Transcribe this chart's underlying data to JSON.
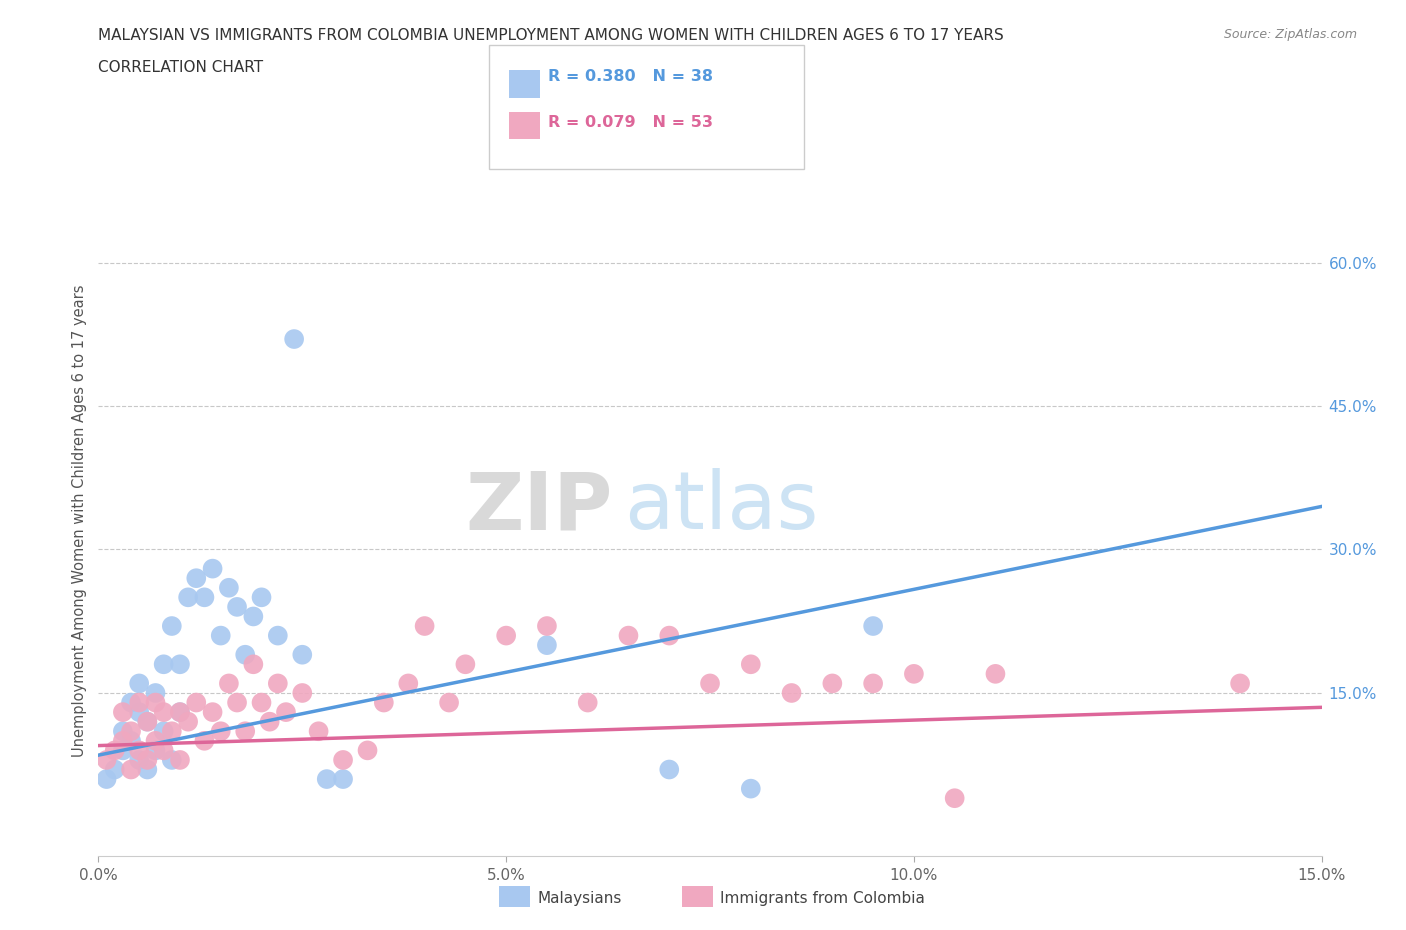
{
  "title_line1": "MALAYSIAN VS IMMIGRANTS FROM COLOMBIA UNEMPLOYMENT AMONG WOMEN WITH CHILDREN AGES 6 TO 17 YEARS",
  "title_line2": "CORRELATION CHART",
  "source": "Source: ZipAtlas.com",
  "ylabel": "Unemployment Among Women with Children Ages 6 to 17 years",
  "xlim": [
    0.0,
    0.15
  ],
  "ylim": [
    -0.02,
    0.68
  ],
  "xtick_labels": [
    "0.0%",
    "5.0%",
    "10.0%",
    "15.0%"
  ],
  "xtick_values": [
    0.0,
    0.05,
    0.1,
    0.15
  ],
  "ytick_labels_right": [
    "15.0%",
    "30.0%",
    "45.0%",
    "60.0%"
  ],
  "ytick_values_right": [
    0.15,
    0.3,
    0.45,
    0.6
  ],
  "grid_color": "#c8c8c8",
  "background_color": "#ffffff",
  "blue_color": "#a8c8f0",
  "pink_color": "#f0a8c0",
  "blue_line_color": "#5599dd",
  "pink_line_color": "#dd6699",
  "legend_R_blue": "R = 0.380",
  "legend_N_blue": "N = 38",
  "legend_R_pink": "R = 0.079",
  "legend_N_pink": "N = 53",
  "label_blue": "Malaysians",
  "label_pink": "Immigrants from Colombia",
  "watermark_zip": "ZIP",
  "watermark_atlas": "atlas",
  "blue_scatter_x": [
    0.001,
    0.002,
    0.003,
    0.003,
    0.004,
    0.004,
    0.005,
    0.005,
    0.005,
    0.006,
    0.006,
    0.007,
    0.007,
    0.008,
    0.008,
    0.009,
    0.009,
    0.01,
    0.01,
    0.011,
    0.012,
    0.013,
    0.014,
    0.015,
    0.016,
    0.017,
    0.018,
    0.019,
    0.02,
    0.022,
    0.024,
    0.025,
    0.028,
    0.03,
    0.055,
    0.07,
    0.08,
    0.095
  ],
  "blue_scatter_y": [
    0.06,
    0.07,
    0.09,
    0.11,
    0.1,
    0.14,
    0.08,
    0.13,
    0.16,
    0.07,
    0.12,
    0.09,
    0.15,
    0.11,
    0.18,
    0.08,
    0.22,
    0.13,
    0.18,
    0.25,
    0.27,
    0.25,
    0.28,
    0.21,
    0.26,
    0.24,
    0.19,
    0.23,
    0.25,
    0.21,
    0.52,
    0.19,
    0.06,
    0.06,
    0.2,
    0.07,
    0.05,
    0.22
  ],
  "pink_scatter_x": [
    0.001,
    0.002,
    0.003,
    0.003,
    0.004,
    0.004,
    0.005,
    0.005,
    0.006,
    0.006,
    0.007,
    0.007,
    0.008,
    0.008,
    0.009,
    0.01,
    0.01,
    0.011,
    0.012,
    0.013,
    0.014,
    0.015,
    0.016,
    0.017,
    0.018,
    0.019,
    0.02,
    0.021,
    0.022,
    0.023,
    0.025,
    0.027,
    0.03,
    0.033,
    0.035,
    0.038,
    0.04,
    0.043,
    0.045,
    0.05,
    0.055,
    0.06,
    0.065,
    0.07,
    0.075,
    0.08,
    0.085,
    0.09,
    0.095,
    0.1,
    0.105,
    0.11,
    0.14
  ],
  "pink_scatter_y": [
    0.08,
    0.09,
    0.1,
    0.13,
    0.07,
    0.11,
    0.09,
    0.14,
    0.08,
    0.12,
    0.1,
    0.14,
    0.09,
    0.13,
    0.11,
    0.08,
    0.13,
    0.12,
    0.14,
    0.1,
    0.13,
    0.11,
    0.16,
    0.14,
    0.11,
    0.18,
    0.14,
    0.12,
    0.16,
    0.13,
    0.15,
    0.11,
    0.08,
    0.09,
    0.14,
    0.16,
    0.22,
    0.14,
    0.18,
    0.21,
    0.22,
    0.14,
    0.21,
    0.21,
    0.16,
    0.18,
    0.15,
    0.16,
    0.16,
    0.17,
    0.04,
    0.17,
    0.16
  ],
  "blue_trend_x": [
    0.0,
    0.15
  ],
  "blue_trend_y": [
    0.085,
    0.345
  ],
  "pink_trend_x": [
    0.0,
    0.15
  ],
  "pink_trend_y": [
    0.095,
    0.135
  ]
}
